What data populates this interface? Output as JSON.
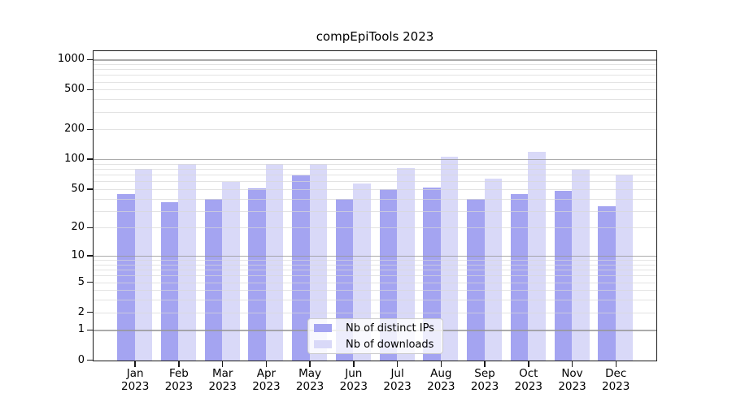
{
  "chart_data": {
    "type": "bar",
    "title": "compEpiTools 2023",
    "scale": "log1p",
    "categories": [
      "Jan",
      "Feb",
      "Mar",
      "Apr",
      "May",
      "Jun",
      "Jul",
      "Aug",
      "Sep",
      "Oct",
      "Nov",
      "Dec"
    ],
    "category_year": "2023",
    "series": [
      {
        "name": "Nb of distinct IPs",
        "color": "#a4a4f1",
        "values": [
          45,
          37,
          40,
          51,
          70,
          40,
          50,
          52,
          40,
          45,
          48,
          34
        ]
      },
      {
        "name": "Nb of downloads",
        "color": "#d9d9f8",
        "values": [
          81,
          90,
          60,
          90,
          91,
          58,
          83,
          108,
          65,
          119,
          80,
          71
        ]
      }
    ],
    "xlabel": "",
    "ylabel": "",
    "y_ticks": [
      0,
      1,
      2,
      5,
      10,
      20,
      50,
      100,
      200,
      500,
      1000
    ],
    "ylim": [
      0,
      1200
    ],
    "grid": "on",
    "grid_major_at": [
      1,
      10,
      100,
      1000
    ],
    "legend_position": "bottom-center-inside",
    "colors": {
      "grid_major": "#b0b0b0",
      "grid_minor": "#e7e7e7",
      "spine": "#1a1a1a",
      "background": "#ffffff"
    }
  }
}
